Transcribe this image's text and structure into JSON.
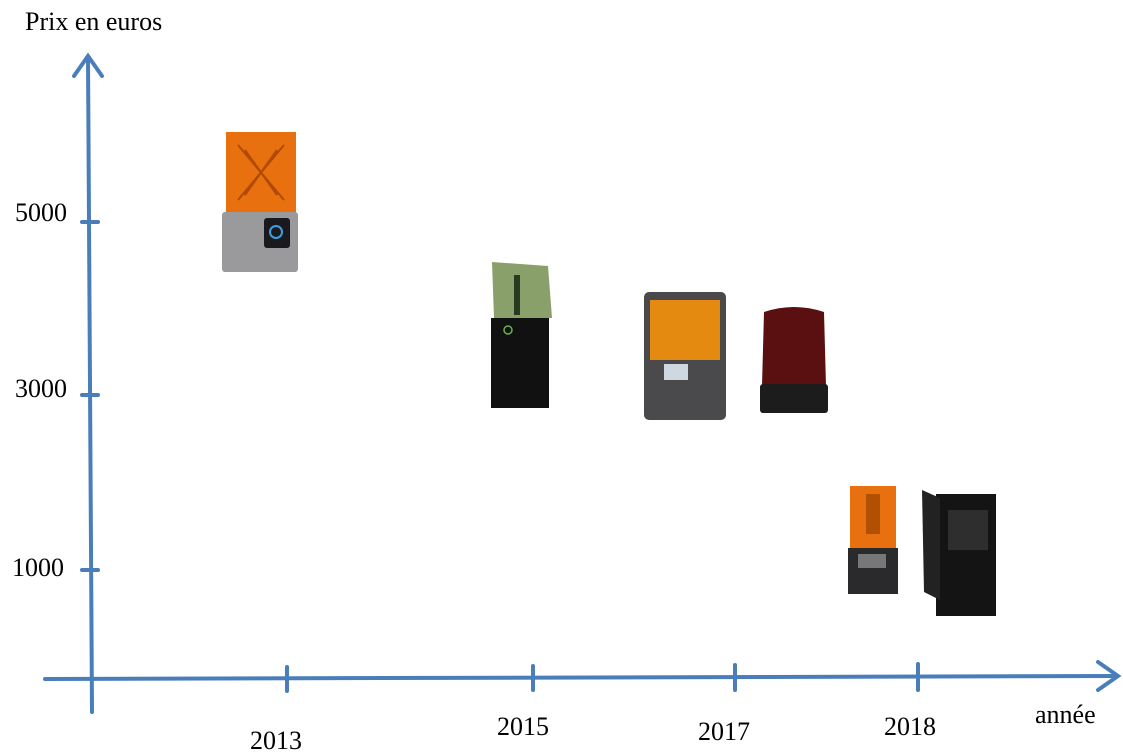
{
  "axes": {
    "y_label": "Prix en euros",
    "x_label": "année",
    "y_ticks": [
      "5000",
      "3000",
      "1000"
    ],
    "x_ticks": [
      "2013",
      "2015",
      "2017",
      "2018"
    ]
  }
}
